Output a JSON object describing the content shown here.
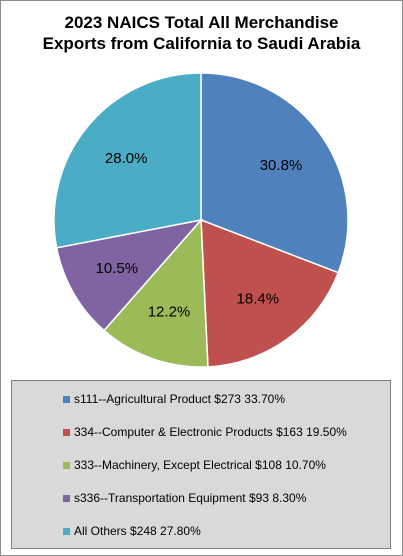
{
  "chart_data": {
    "type": "pie",
    "title": "2023 NAICS Total All Merchandise Exports from California to Saudi Arabia",
    "title_lines": [
      "2023 NAICS Total All Merchandise",
      "Exports from California to Saudi Arabia"
    ],
    "slices": [
      {
        "label": "30.8%",
        "value": 30.8,
        "color": "#4f81bd"
      },
      {
        "label": "18.4%",
        "value": 18.4,
        "color": "#c0504d"
      },
      {
        "label": "12.2%",
        "value": 12.2,
        "color": "#9bbb59"
      },
      {
        "label": "10.5%",
        "value": 10.5,
        "color": "#8064a2"
      },
      {
        "label": "28.0%",
        "value": 28.0,
        "color": "#4bacc6"
      }
    ],
    "legend": {
      "position": "bottom",
      "entries": [
        {
          "text": "s111--Agricultural Product $273 33.70%",
          "color": "#4f81bd"
        },
        {
          "text": "334--Computer & Electronic Products $163 19.50%",
          "color": "#c0504d"
        },
        {
          "text": "333--Machinery, Except Electrical $108 10.70%",
          "color": "#9bbb59"
        },
        {
          "text": "s336--Transportation Equipment $93 8.30%",
          "color": "#8064a2"
        },
        {
          "text": "All Others $248 27.80%",
          "color": "#4bacc6"
        }
      ]
    }
  }
}
